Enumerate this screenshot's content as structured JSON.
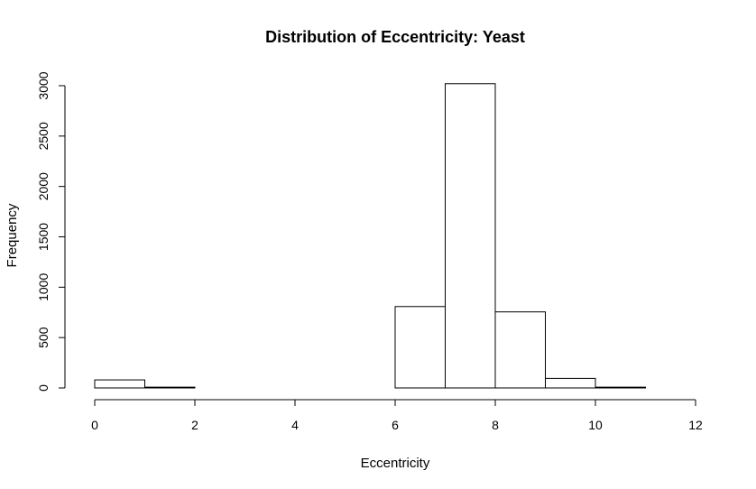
{
  "chart_data": {
    "type": "bar",
    "title": "Distribution of Eccentricity: Yeast",
    "xlabel": "Eccentricity",
    "ylabel": "Frequency",
    "bin_edges": [
      0,
      1,
      2,
      3,
      4,
      5,
      6,
      7,
      8,
      9,
      10,
      11,
      12
    ],
    "values": [
      80,
      8,
      0,
      0,
      0,
      0,
      808,
      3020,
      755,
      95,
      8,
      0
    ],
    "xlim": [
      0,
      12
    ],
    "ylim": [
      0,
      3000
    ],
    "x_ticks": [
      0,
      2,
      4,
      6,
      8,
      10,
      12
    ],
    "x_tick_labels": [
      "0",
      "2",
      "4",
      "6",
      "8",
      "10",
      "12"
    ],
    "y_ticks": [
      0,
      500,
      1000,
      1500,
      2000,
      2500,
      3000
    ],
    "y_tick_labels": [
      "0",
      "500",
      "1000",
      "1500",
      "2000",
      "2500",
      "3000"
    ],
    "grid": false,
    "colors": {
      "bar_fill": "#ffffff",
      "bar_stroke": "#000000"
    }
  }
}
